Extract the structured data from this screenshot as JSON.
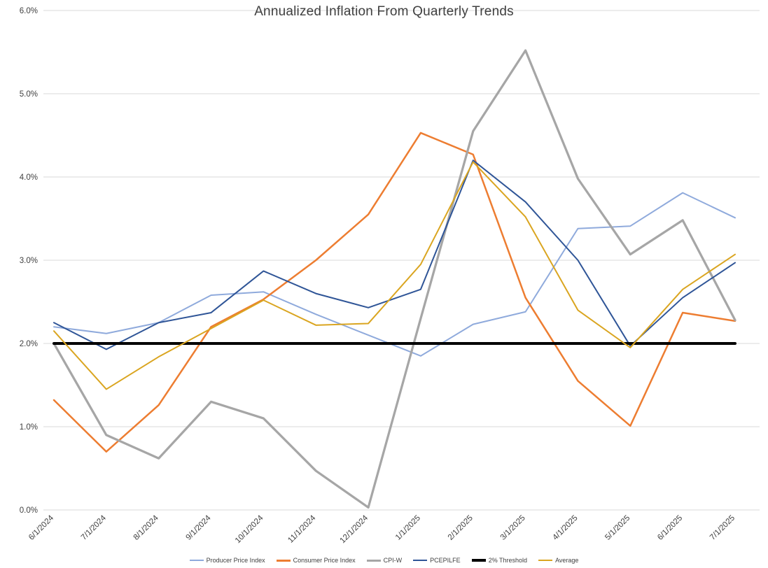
{
  "chart_data": {
    "type": "line",
    "title": "Annualized Inflation From Quarterly Trends",
    "xlabel": "",
    "ylabel": "",
    "grid": true,
    "legend_position": "bottom",
    "y_axis": {
      "min": 0,
      "max": 6,
      "step": 1
    },
    "y_tick_labels": [
      "0.0%",
      "1.0%",
      "2.0%",
      "3.0%",
      "4.0%",
      "5.0%",
      "6.0%"
    ],
    "categories": [
      "6/1/2024",
      "7/1/2024",
      "8/1/2024",
      "9/1/2024",
      "10/1/2024",
      "11/1/2024",
      "12/1/2024",
      "1/1/2025",
      "2/1/2025",
      "3/1/2025",
      "4/1/2025",
      "5/1/2025",
      "6/1/2025",
      "7/1/2025"
    ],
    "series": [
      {
        "name": "Producer Price Index",
        "color": "#8FAADC",
        "width": 2,
        "values": [
          2.2,
          2.12,
          2.25,
          2.58,
          2.62,
          2.35,
          2.1,
          1.85,
          2.23,
          2.38,
          3.38,
          3.41,
          3.81,
          3.51
        ]
      },
      {
        "name": "Consumer Price Index",
        "color": "#ED7D31",
        "width": 2.5,
        "values": [
          1.32,
          0.7,
          1.26,
          2.2,
          2.53,
          3.0,
          3.55,
          4.53,
          4.27,
          2.55,
          1.55,
          1.01,
          2.37,
          2.27
        ]
      },
      {
        "name": "CPI-W",
        "color": "#A6A6A6",
        "width": 3.25,
        "values": [
          2.0,
          0.9,
          0.62,
          1.3,
          1.1,
          0.47,
          0.03,
          2.3,
          4.55,
          5.52,
          3.98,
          3.07,
          3.48,
          2.28
        ]
      },
      {
        "name": "PCEPILFE",
        "color": "#2F5597",
        "width": 2,
        "values": [
          2.25,
          1.93,
          2.25,
          2.37,
          2.87,
          2.6,
          2.43,
          2.65,
          4.2,
          3.7,
          3.0,
          1.97,
          2.55,
          2.97
        ]
      },
      {
        "name": "2% Threshold",
        "color": "#000000",
        "width": 4,
        "values": [
          2.0,
          2.0,
          2.0,
          2.0,
          2.0,
          2.0,
          2.0,
          2.0,
          2.0,
          2.0,
          2.0,
          2.0,
          2.0,
          2.0
        ]
      },
      {
        "name": "Average",
        "color": "#DAA520",
        "width": 2,
        "values": [
          2.15,
          1.45,
          1.84,
          2.18,
          2.52,
          2.22,
          2.24,
          2.95,
          4.18,
          3.52,
          2.4,
          1.95,
          2.65,
          3.07
        ]
      }
    ],
    "gridline_color": "#D9D9D9"
  }
}
